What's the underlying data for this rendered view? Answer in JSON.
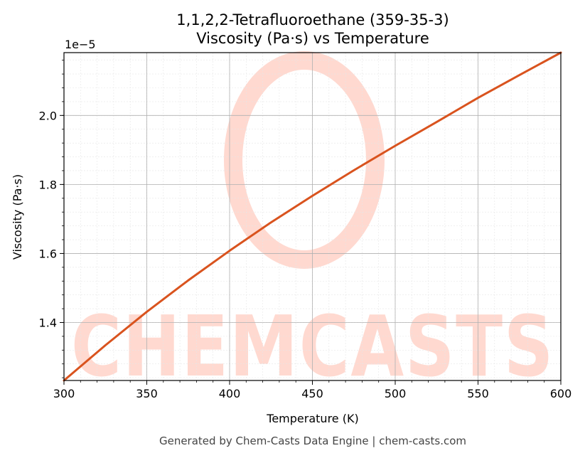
{
  "chart_data": {
    "type": "line",
    "title": "1,1,2,2-Tetrafluoroethane (359-35-3)",
    "subtitle": "Viscosity (Pa·s) vs Temperature",
    "xlabel": "Temperature (K)",
    "ylabel": "Viscosity (Pa·s)",
    "y_scale_note": "1e−5",
    "xlim": [
      300,
      600
    ],
    "ylim": [
      1.232,
      2.182
    ],
    "y_multiplier": 1e-05,
    "x_ticks": [
      300,
      350,
      400,
      450,
      500,
      550,
      600
    ],
    "x_tick_labels": [
      "300",
      "350",
      "400",
      "450",
      "500",
      "550",
      "600"
    ],
    "y_ticks": [
      1.4,
      1.6,
      1.8,
      2.0
    ],
    "y_tick_labels": [
      "1.4",
      "1.6",
      "1.8",
      "2.0"
    ],
    "grid": true,
    "line_color": "#d9531e",
    "x": [
      300,
      325,
      350,
      375,
      400,
      425,
      450,
      475,
      500,
      525,
      550,
      575,
      600
    ],
    "series": [
      {
        "values": [
          1.232,
          1.334,
          1.431,
          1.522,
          1.608,
          1.69,
          1.767,
          1.841,
          1.912,
          1.981,
          2.051,
          2.117,
          2.182
        ]
      }
    ]
  },
  "watermark": {
    "text": "CHEMCASTS",
    "color": "#ffd9d0"
  },
  "footer": {
    "text": "Generated by Chem-Casts Data Engine | chem-casts.com"
  }
}
